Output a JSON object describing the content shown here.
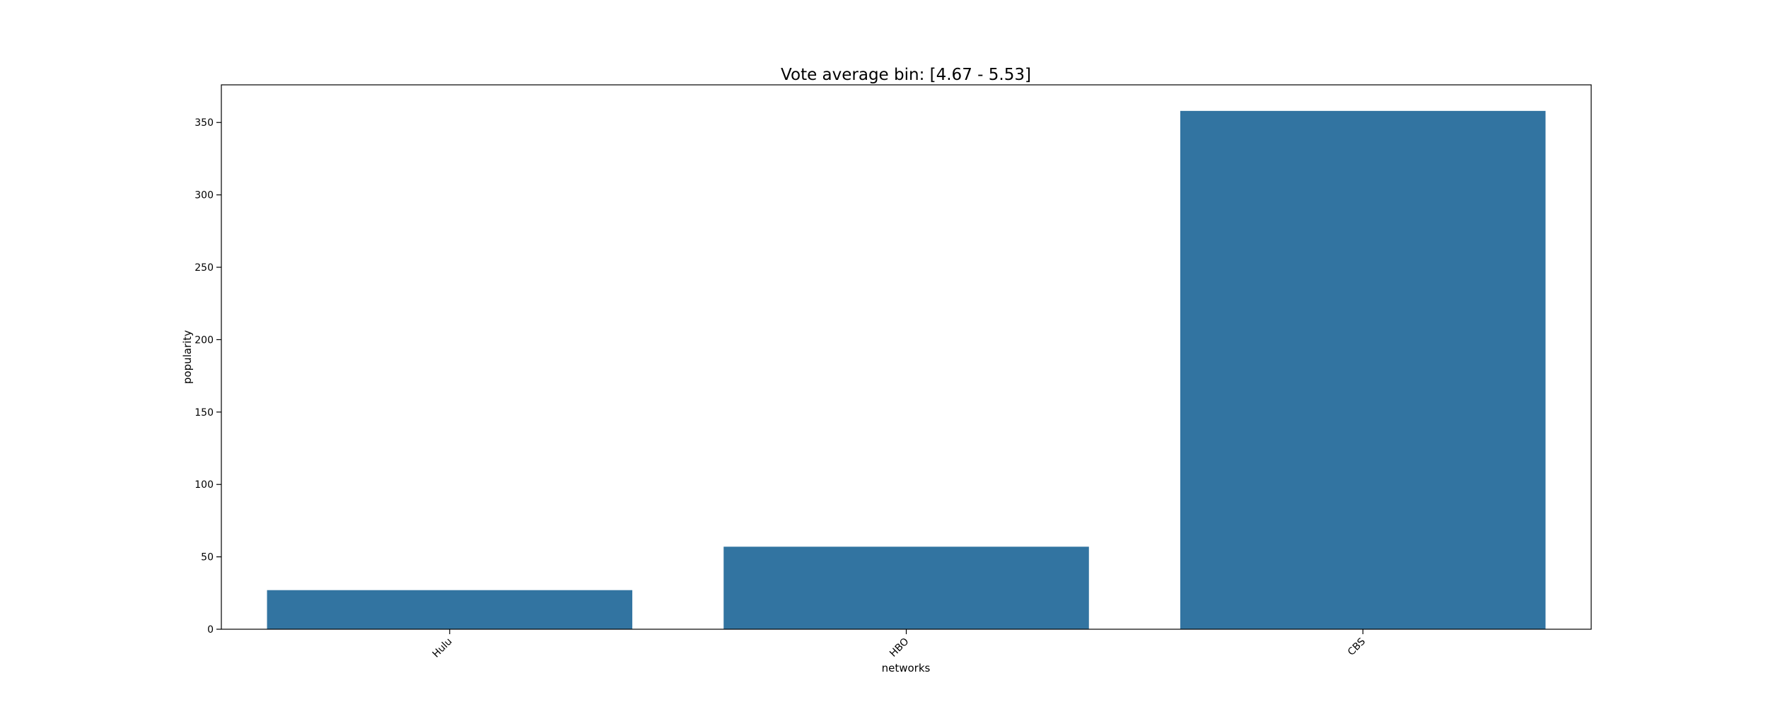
{
  "chart_data": {
    "type": "bar",
    "title": "Vote average bin: [4.67 - 5.53]",
    "xlabel": "networks",
    "ylabel": "popularity",
    "categories": [
      "Hulu",
      "HBO",
      "CBS"
    ],
    "values": [
      27,
      57,
      358
    ],
    "ylim": [
      0,
      376
    ],
    "yticks": [
      "0",
      "50",
      "100",
      "150",
      "200",
      "250",
      "300",
      "350"
    ],
    "grid": false,
    "bar_color": "#3274a1"
  }
}
